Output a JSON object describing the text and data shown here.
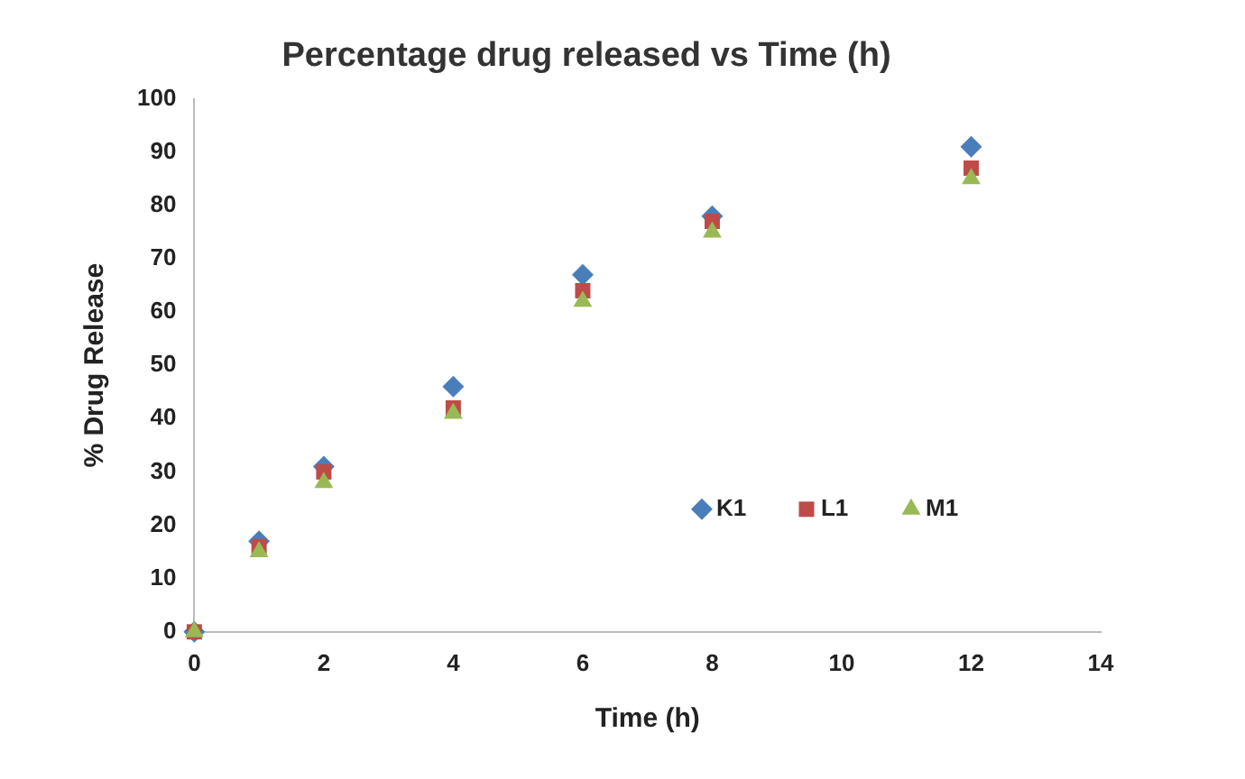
{
  "chart_data": {
    "type": "scatter",
    "title": "Percentage drug released vs Time (h)",
    "xlabel": "Time (h)",
    "ylabel": "% Drug Release",
    "x": [
      0,
      1,
      2,
      4,
      6,
      8,
      12
    ],
    "series": [
      {
        "name": "K1",
        "color": "#4a7ebb",
        "marker": "diamond",
        "values": [
          0,
          17,
          31,
          46,
          67,
          78,
          91
        ]
      },
      {
        "name": "L1",
        "color": "#be4b48",
        "marker": "square",
        "values": [
          0,
          16,
          30,
          42,
          64,
          77,
          87
        ]
      },
      {
        "name": "M1",
        "color": "#98b954",
        "marker": "triangle",
        "values": [
          0,
          15,
          28,
          41,
          62,
          75,
          85
        ]
      }
    ],
    "xlim": [
      0,
      14
    ],
    "xticks": [
      0,
      2,
      4,
      6,
      8,
      10,
      12,
      14
    ],
    "ylim": [
      0,
      100
    ],
    "yticks": [
      0,
      10,
      20,
      30,
      40,
      50,
      60,
      70,
      80,
      90,
      100
    ],
    "grid": false,
    "legend": "right"
  }
}
